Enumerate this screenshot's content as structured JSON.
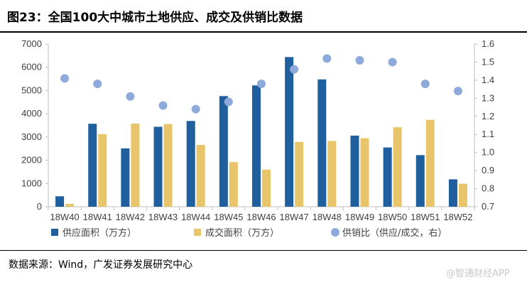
{
  "title": "图23：全国100大中城市土地供应、成交及供销比数据",
  "source": "数据来源：Wind，广发证券发展研究中心",
  "watermark": "@智通财经APP",
  "colors": {
    "supply": "#1f5f9e",
    "deal": "#e8c46a",
    "ratio": "#8eaadb",
    "axis": "#bfbfbf",
    "text": "#404040"
  },
  "chart_data": {
    "type": "bar",
    "categories": [
      "18W40",
      "18W41",
      "18W42",
      "18W43",
      "18W44",
      "18W45",
      "18W46",
      "18W47",
      "18W48",
      "18W49",
      "18W50",
      "18W51",
      "18W52"
    ],
    "series": [
      {
        "name": "供应面积（万方）",
        "kind": "bar",
        "axis": "left",
        "values": [
          450,
          3570,
          2510,
          3440,
          3690,
          4760,
          5220,
          6440,
          5480,
          3060,
          2550,
          2220,
          1180
        ]
      },
      {
        "name": "成交面积（万方）",
        "kind": "bar",
        "axis": "left",
        "values": [
          120,
          3120,
          3580,
          3560,
          2660,
          1920,
          1600,
          2790,
          2830,
          2950,
          3420,
          3740,
          990
        ]
      },
      {
        "name": "供销比（供应/成交，右）",
        "kind": "scatter",
        "axis": "right",
        "values": [
          1.41,
          1.38,
          1.31,
          1.26,
          1.24,
          1.28,
          1.38,
          1.46,
          1.52,
          1.51,
          1.5,
          1.38,
          1.34
        ]
      }
    ],
    "y_left": {
      "min": 0,
      "max": 7000,
      "step": 1000,
      "ticks": [
        "0",
        "1000",
        "2000",
        "3000",
        "4000",
        "5000",
        "6000",
        "7000"
      ]
    },
    "y_right": {
      "min": 0.7,
      "max": 1.6,
      "step": 0.1,
      "ticks": [
        "0.7",
        "0.8",
        "0.9",
        "1.0",
        "1.1",
        "1.2",
        "1.3",
        "1.4",
        "1.5",
        "1.6"
      ]
    },
    "legend": [
      "供应面积（万方）",
      "成交面积（万方）",
      "供销比（供应/成交，右）"
    ],
    "legend_position": "bottom",
    "grid": false
  }
}
